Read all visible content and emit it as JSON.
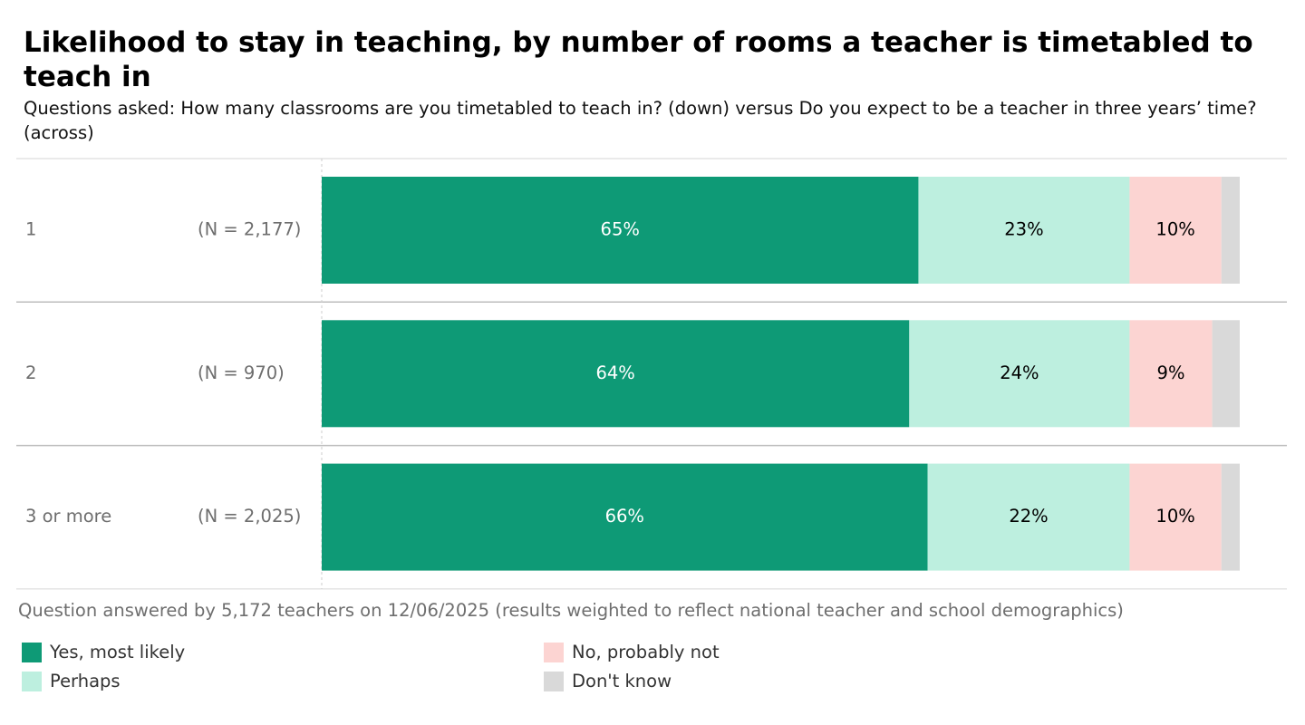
{
  "title": "Likelihood to stay in teaching, by number of rooms a teacher is timetabled to teach in",
  "subtitle": "Questions asked: How many classrooms are you timetabled to teach in?  (down) versus Do you expect to be a teacher in three years’ time? (across)",
  "note": "Question answered by 5,172 teachers on 12/06/2025 (results weighted to reflect national teacher and school demographics)",
  "colors": {
    "yes": "#0e9a76",
    "perhaps": "#bdefdf",
    "no": "#fcd4d2",
    "dontknow": "#d9d9d9",
    "text_dark": "#000000",
    "text_light": "#ffffff",
    "label_grey": "#6e6e6e"
  },
  "legend": [
    {
      "label": "Yes, most likely",
      "color": "#0e9a76"
    },
    {
      "label": "Perhaps",
      "color": "#bdefdf"
    },
    {
      "label": "No, probably not",
      "color": "#fcd4d2"
    },
    {
      "label": "Don't know",
      "color": "#d9d9d9"
    }
  ],
  "chart_data": {
    "type": "bar",
    "orientation": "horizontal",
    "stacked": true,
    "xlim": [
      0,
      100
    ],
    "categories": [
      "1",
      "2",
      "3 or more"
    ],
    "sample_sizes": [
      "(N = 2,177)",
      "(N = 970)",
      "(N = 2,025)"
    ],
    "series": [
      {
        "name": "Yes, most likely",
        "values": [
          65,
          64,
          66
        ],
        "labels": [
          "65%",
          "64%",
          "66%"
        ]
      },
      {
        "name": "Perhaps",
        "values": [
          23,
          24,
          22
        ],
        "labels": [
          "23%",
          "24%",
          "22%"
        ]
      },
      {
        "name": "No, probably not",
        "values": [
          10,
          9,
          10
        ],
        "labels": [
          "10%",
          "9%",
          "10%"
        ]
      },
      {
        "name": "Don't know",
        "values": [
          2,
          3,
          2
        ],
        "labels": [
          "",
          "",
          ""
        ]
      }
    ]
  }
}
